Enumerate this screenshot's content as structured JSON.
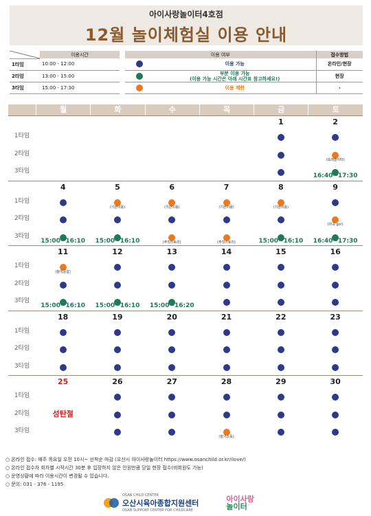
{
  "header": {
    "subtitle": "아이사랑놀이터4호점",
    "title": "12월 놀이체험실 이용 안내"
  },
  "time_table": {
    "header": "이용시간",
    "rows": [
      {
        "label": "1타임",
        "time": "10:00 - 12:00"
      },
      {
        "label": "2타임",
        "time": "13:00 - 15:00"
      },
      {
        "label": "3타임",
        "time": "15:00 - 17:30"
      }
    ]
  },
  "legend_table": {
    "header_status": "이용 여부",
    "header_method": "접수방법",
    "rows": [
      {
        "color": "blue",
        "text": "이용 가능",
        "text2": "",
        "method": "온라인/현장"
      },
      {
        "color": "green",
        "text": "부분 이용 가능",
        "text2": "(이용 가능 시간은 아래 시간표 참고하세요!)",
        "method": "현장"
      },
      {
        "color": "orange",
        "text": "이용 제한",
        "text2": "",
        "method": "-"
      }
    ]
  },
  "colors": {
    "blue": "#2e3a87",
    "green": "#1e7a56",
    "orange": "#f07818",
    "header_bg": "#efe9e3",
    "title": "#8b5a2b"
  },
  "calendar": {
    "days": [
      "월",
      "화",
      "수",
      "목",
      "금",
      "토"
    ],
    "slot_labels": [
      "1타임",
      "2타임",
      "3타임"
    ],
    "weeks": [
      {
        "dates": [
          "",
          "",
          "",
          "",
          "1",
          "2"
        ],
        "slots": [
          [
            null,
            null,
            null,
            null,
            {
              "c": "blue"
            },
            {
              "c": "blue"
            }
          ],
          [
            null,
            null,
            null,
            null,
            {
              "c": "blue"
            },
            {
              "c": "orange",
              "note": "(또래놀이터)"
            }
          ],
          [
            null,
            null,
            null,
            null,
            {
              "c": "blue"
            },
            {
              "c": "green",
              "time": "16:40~17:30"
            }
          ]
        ]
      },
      {
        "dates": [
          "4",
          "5",
          "6",
          "7",
          "8",
          "9"
        ],
        "slots": [
          [
            {
              "c": "blue"
            },
            {
              "c": "orange",
              "note": "(기관이용)"
            },
            {
              "c": "orange",
              "note": "(기관이용)"
            },
            {
              "c": "orange",
              "note": "(기관이용)"
            },
            {
              "c": "orange",
              "note": "(기관이용)"
            },
            {
              "c": "blue"
            }
          ],
          [
            {
              "c": "blue"
            },
            {
              "c": "blue"
            },
            {
              "c": "blue"
            },
            {
              "c": "blue"
            },
            {
              "c": "blue"
            },
            {
              "c": "orange",
              "note": "(차곡 go!)"
            }
          ],
          [
            {
              "c": "green",
              "time": "15:00~16:10"
            },
            {
              "c": "green",
              "time": "15:00~16:10"
            },
            {
              "c": "orange",
              "note": "(주짓스토리)"
            },
            {
              "c": "orange",
              "note": "(주짓스토리)"
            },
            {
              "c": "green",
              "time": "15:00~16:10"
            },
            {
              "c": "green",
              "time": "16:40~17:30"
            }
          ]
        ]
      },
      {
        "dates": [
          "11",
          "12",
          "13",
          "14",
          "15",
          "16"
        ],
        "slots": [
          [
            {
              "c": "orange",
              "note": "(놀이공감)"
            },
            {
              "c": "blue"
            },
            {
              "c": "blue"
            },
            {
              "c": "blue"
            },
            {
              "c": "blue"
            },
            {
              "c": "blue"
            }
          ],
          [
            {
              "c": "blue"
            },
            {
              "c": "blue"
            },
            {
              "c": "blue"
            },
            {
              "c": "blue"
            },
            {
              "c": "blue"
            },
            {
              "c": "blue"
            }
          ],
          [
            {
              "c": "green",
              "time": "15:00~16:10"
            },
            {
              "c": "green",
              "time": "15:00~16:10"
            },
            {
              "c": "green",
              "time": "15:00~16:20"
            },
            {
              "c": "blue"
            },
            {
              "c": "blue"
            },
            {
              "c": "blue"
            }
          ]
        ]
      },
      {
        "dates": [
          "18",
          "19",
          "20",
          "21",
          "22",
          "23"
        ],
        "slots": [
          [
            {
              "c": "blue"
            },
            {
              "c": "blue"
            },
            {
              "c": "blue"
            },
            {
              "c": "blue"
            },
            {
              "c": "blue"
            },
            {
              "c": "blue"
            }
          ],
          [
            {
              "c": "blue"
            },
            {
              "c": "blue"
            },
            {
              "c": "blue"
            },
            {
              "c": "blue"
            },
            {
              "c": "blue"
            },
            {
              "c": "blue"
            }
          ],
          [
            {
              "c": "blue"
            },
            {
              "c": "blue"
            },
            {
              "c": "blue"
            },
            {
              "c": "blue"
            },
            {
              "c": "blue"
            },
            {
              "c": "blue"
            }
          ]
        ]
      },
      {
        "dates": [
          "25",
          "26",
          "27",
          "28",
          "29",
          "30"
        ],
        "red_dates": [
          0
        ],
        "holiday": {
          "col": 0,
          "text": "성탄절"
        },
        "slots": [
          [
            null,
            {
              "c": "blue"
            },
            {
              "c": "blue"
            },
            {
              "c": "blue"
            },
            {
              "c": "blue"
            },
            {
              "c": "blue"
            }
          ],
          [
            null,
            {
              "c": "blue"
            },
            {
              "c": "blue"
            },
            {
              "c": "blue"
            },
            {
              "c": "blue"
            },
            {
              "c": "blue"
            }
          ],
          [
            null,
            {
              "c": "blue"
            },
            {
              "c": "blue"
            },
            {
              "c": "orange",
              "note": "(장기소독)"
            },
            {
              "c": "blue"
            },
            {
              "c": "blue"
            }
          ]
        ]
      }
    ]
  },
  "footer": {
    "lines": [
      "○ 온라인 접수: 매주 목요일 오전 10시~ 선착순 마감 (오산시 아이사랑놀이터 https://www.osanchild.or.kr/ilove/)",
      "○ 온라인 접수자 회차별 시작시간 30분 후 입장하지 않은 인원만큼 당일 현장 접수(비회원도 가능)",
      "○ 운영상황에 따라 이용시간이 변경될 수 있습니다.",
      "○ 문의: 031 - 376 - 1195"
    ],
    "logo1_small": "OSAN CHILD CENTER",
    "logo1": "오산시육아종합지원센터",
    "logo1_en": "OSAN SUPPORT CENTER FOR CHILDCARE",
    "logo2_a": "아이사랑",
    "logo2_b": "놀이터"
  }
}
